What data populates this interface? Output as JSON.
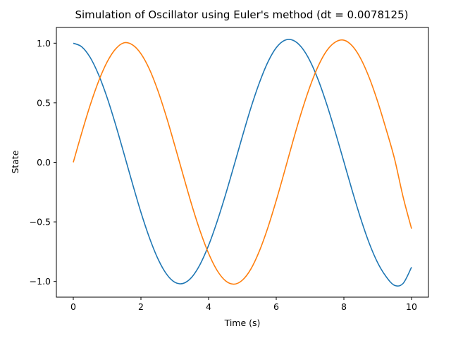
{
  "chart_data": {
    "type": "line",
    "title": "Simulation of Oscillator using Euler's method (dt = 0.0078125)",
    "xlabel": "Time (s)",
    "ylabel": "State",
    "xlim": [
      -0.5,
      10.5
    ],
    "ylim": [
      -1.132,
      1.132
    ],
    "grid": false,
    "legend": "none",
    "xticks": [
      0,
      2,
      4,
      6,
      8,
      10
    ],
    "xtick_labels": [
      "0",
      "2",
      "4",
      "6",
      "8",
      "10"
    ],
    "yticks": [
      -1.0,
      -0.5,
      0.0,
      0.5,
      1.0
    ],
    "ytick_labels": [
      "−1.0",
      "−0.5",
      "0.0",
      "0.5",
      "1.0"
    ],
    "x": [
      0,
      0.25,
      0.5,
      0.75,
      1.0,
      1.25,
      1.5,
      1.75,
      2.0,
      2.25,
      2.5,
      2.75,
      3.0,
      3.25,
      3.5,
      3.75,
      4.0,
      4.25,
      4.5,
      4.75,
      5.0,
      5.25,
      5.5,
      5.75,
      6.0,
      6.25,
      6.5,
      6.75,
      7.0,
      7.25,
      7.5,
      7.75,
      8.0,
      8.25,
      8.5,
      8.75,
      9.0,
      9.25,
      9.5,
      9.75,
      10.0
    ],
    "series": [
      {
        "color": "#1f77b4",
        "values": [
          1.0,
          0.9696,
          0.88,
          0.7342,
          0.5431,
          0.3172,
          0.0713,
          -0.1789,
          -0.4197,
          -0.6324,
          -0.8084,
          -0.9357,
          -1.0065,
          -1.0163,
          -0.9653,
          -0.8562,
          -0.6974,
          -0.4985,
          -0.2726,
          -0.0291,
          0.2188,
          0.4567,
          0.6664,
          0.8396,
          0.962,
          1.024,
          1.0242,
          0.9648,
          0.85,
          0.6854,
          0.481,
          0.2501,
          0.0047,
          -0.2417,
          -0.4747,
          -0.6799,
          -0.844,
          -0.9604,
          -1.0333,
          -1.0168,
          -0.8804
        ]
      },
      {
        "color": "#ff7f0e",
        "values": [
          0.0,
          0.2475,
          0.48,
          0.6816,
          0.842,
          0.9512,
          1.0036,
          0.9861,
          0.9117,
          0.7822,
          0.6021,
          0.384,
          0.1414,
          -0.1093,
          -0.3552,
          -0.5772,
          -0.7645,
          -0.9066,
          -0.9946,
          -1.0228,
          -0.989,
          -0.8958,
          -0.7459,
          -0.5503,
          -0.3208,
          -0.0712,
          0.1833,
          0.4246,
          0.6381,
          0.8137,
          0.94,
          1.01,
          1.0252,
          0.9764,
          0.8693,
          0.7101,
          0.5084,
          0.2762,
          0.026,
          -0.2897,
          -0.5568
        ]
      }
    ]
  }
}
